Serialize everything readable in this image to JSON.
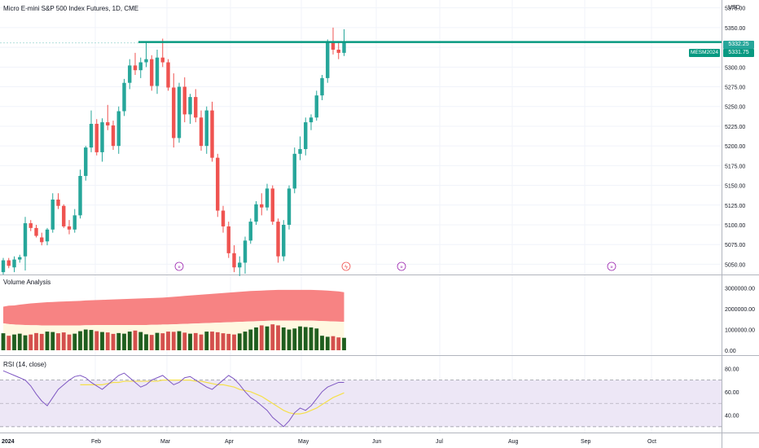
{
  "header": {
    "title": "Micro E-mini S&P 500 Index Futures, 1D, CME",
    "currency": "USD"
  },
  "price_tags": {
    "last_price": "5332.25",
    "line_price": "5331.75",
    "line_label": "MESM2024"
  },
  "panes": {
    "volume_title": "Volume Analysis",
    "rsi_title": "RSI (14, close)"
  },
  "colors": {
    "up": "#26a69a",
    "down": "#ef5350",
    "horizontal_line": "#089981",
    "volume_up": "#1f5e1f",
    "volume_down": "#cc3333",
    "volume_band_upper": "#f77c7c",
    "volume_band_lower": "#fff8e1",
    "rsi_line": "#7e57c2",
    "rsi_ma": "#f5e04a",
    "rsi_band": "#ede7f6",
    "event_icon": "#9c27b0"
  },
  "icons": [
    "dividend-icon",
    "earnings-lightning-icon"
  ],
  "chart_data": [
    {
      "type": "candlestick",
      "title": "Micro E-mini S&P 500 Index Futures, 1D, CME",
      "ylim": [
        5037,
        5385
      ],
      "y_ticks": [
        "5375.00",
        "5350.00",
        "5325.00",
        "5300.00",
        "5275.00",
        "5250.00",
        "5225.00",
        "5200.00",
        "5175.00",
        "5150.00",
        "5125.00",
        "5100.00",
        "5075.00",
        "5050.00"
      ],
      "x_ticks": [
        "2024",
        "Feb",
        "Mar",
        "Apr",
        "May",
        "Jun",
        "Jul",
        "Aug",
        "Sep",
        "Oct"
      ],
      "horizontal_line": 5331.75,
      "last_price": 5332.25,
      "candles": [
        [
          0,
          5040,
          5058,
          5037,
          5055
        ],
        [
          1,
          5055,
          5058,
          5045,
          5048
        ],
        [
          2,
          5046,
          5060,
          5040,
          5056
        ],
        [
          3,
          5056,
          5062,
          5052,
          5059
        ],
        [
          4,
          5060,
          5110,
          5042,
          5102
        ],
        [
          5,
          5102,
          5106,
          5092,
          5096
        ],
        [
          6,
          5096,
          5100,
          5084,
          5086
        ],
        [
          7,
          5084,
          5090,
          5074,
          5078
        ],
        [
          8,
          5079,
          5096,
          5074,
          5094
        ],
        [
          9,
          5094,
          5140,
          5090,
          5132
        ],
        [
          10,
          5132,
          5140,
          5120,
          5124
        ],
        [
          11,
          5124,
          5126,
          5096,
          5098
        ],
        [
          12,
          5098,
          5106,
          5088,
          5094
        ],
        [
          13,
          5094,
          5120,
          5090,
          5112
        ],
        [
          14,
          5112,
          5170,
          5108,
          5162
        ],
        [
          15,
          5162,
          5200,
          5156,
          5198
        ],
        [
          16,
          5198,
          5245,
          5192,
          5228
        ],
        [
          17,
          5228,
          5234,
          5188,
          5192
        ],
        [
          18,
          5192,
          5235,
          5180,
          5230
        ],
        [
          19,
          5230,
          5252,
          5220,
          5226
        ],
        [
          20,
          5226,
          5232,
          5195,
          5200
        ],
        [
          21,
          5200,
          5250,
          5190,
          5244
        ],
        [
          22,
          5244,
          5285,
          5238,
          5280
        ],
        [
          23,
          5280,
          5310,
          5272,
          5302
        ],
        [
          24,
          5302,
          5318,
          5290,
          5296
        ],
        [
          25,
          5296,
          5312,
          5286,
          5306
        ],
        [
          26,
          5306,
          5332,
          5300,
          5310
        ],
        [
          27,
          5310,
          5315,
          5270,
          5276
        ],
        [
          28,
          5276,
          5322,
          5266,
          5312
        ],
        [
          29,
          5312,
          5336,
          5300,
          5306
        ],
        [
          30,
          5306,
          5310,
          5270,
          5274
        ],
        [
          31,
          5274,
          5292,
          5198,
          5210
        ],
        [
          32,
          5210,
          5280,
          5204,
          5275
        ],
        [
          33,
          5275,
          5287,
          5230,
          5240
        ],
        [
          34,
          5240,
          5266,
          5228,
          5262
        ],
        [
          35,
          5262,
          5272,
          5230,
          5236
        ],
        [
          36,
          5236,
          5245,
          5194,
          5200
        ],
        [
          37,
          5200,
          5250,
          5190,
          5245
        ],
        [
          38,
          5245,
          5256,
          5180,
          5185
        ],
        [
          39,
          5185,
          5190,
          5110,
          5118
        ],
        [
          40,
          5118,
          5124,
          5090,
          5098
        ],
        [
          41,
          5098,
          5104,
          5058,
          5064
        ],
        [
          42,
          5064,
          5074,
          5040,
          5046
        ],
        [
          43,
          5046,
          5060,
          5035,
          5052
        ],
        [
          44,
          5052,
          5085,
          5038,
          5080
        ],
        [
          45,
          5080,
          5108,
          5076,
          5104
        ],
        [
          46,
          5104,
          5130,
          5100,
          5126
        ],
        [
          47,
          5126,
          5140,
          5112,
          5122
        ],
        [
          48,
          5122,
          5152,
          5118,
          5146
        ],
        [
          49,
          5146,
          5150,
          5100,
          5104
        ],
        [
          50,
          5104,
          5108,
          5052,
          5060
        ],
        [
          51,
          5060,
          5106,
          5054,
          5100
        ],
        [
          52,
          5100,
          5150,
          5094,
          5146
        ],
        [
          53,
          5146,
          5198,
          5140,
          5190
        ],
        [
          54,
          5190,
          5212,
          5182,
          5196
        ],
        [
          55,
          5196,
          5236,
          5188,
          5230
        ],
        [
          56,
          5230,
          5240,
          5220,
          5236
        ],
        [
          57,
          5236,
          5270,
          5232,
          5264
        ],
        [
          58,
          5264,
          5290,
          5258,
          5286
        ],
        [
          59,
          5286,
          5335,
          5280,
          5331
        ],
        [
          60,
          5331,
          5350,
          5316,
          5322
        ],
        [
          61,
          5322,
          5332,
          5310,
          5318
        ],
        [
          62,
          5318,
          5348,
          5314,
          5332
        ]
      ]
    },
    {
      "type": "bar",
      "title": "Volume Analysis",
      "ylim": [
        0,
        3300000
      ],
      "y_ticks": [
        "3000000.00",
        "2000000.00",
        "1000000.00",
        "0.00"
      ],
      "values": [
        820000,
        700000,
        760000,
        800000,
        720000,
        760000,
        830000,
        790000,
        900000,
        880000,
        820000,
        860000,
        760000,
        800000,
        920000,
        1000000,
        980000,
        920000,
        880000,
        860000,
        790000,
        830000,
        800000,
        900000,
        950000,
        880000,
        770000,
        740000,
        840000,
        820000,
        900000,
        890000,
        920000,
        850000,
        800000,
        830000,
        760000,
        900000,
        900000,
        870000,
        820000,
        790000,
        760000,
        810000,
        900000,
        1000000,
        1100000,
        1200000,
        1150000,
        1250000,
        1200000,
        1100000,
        1000000,
        1050000,
        1150000,
        1120000,
        1100000,
        1050000,
        700000,
        650000,
        680000,
        620000,
        600000
      ],
      "band_upper": [
        2100000,
        2150000,
        2160000,
        2200000,
        2230000,
        2260000,
        2280000,
        2300000,
        2320000,
        2330000,
        2340000,
        2350000,
        2360000,
        2370000,
        2380000,
        2400000,
        2410000,
        2420000,
        2430000,
        2440000,
        2450000,
        2460000,
        2470000,
        2480000,
        2490000,
        2500000,
        2510000,
        2520000,
        2530000,
        2540000,
        2560000,
        2580000,
        2600000,
        2620000,
        2640000,
        2660000,
        2680000,
        2700000,
        2720000,
        2740000,
        2760000,
        2780000,
        2800000,
        2820000,
        2840000,
        2860000,
        2870000,
        2880000,
        2890000,
        2900000,
        2910000,
        2910000,
        2910000,
        2910000,
        2910000,
        2910000,
        2910000,
        2900000,
        2890000,
        2880000,
        2860000,
        2840000,
        2800000
      ],
      "band_lower": [
        1300000,
        1260000,
        1240000,
        1230000,
        1220000,
        1210000,
        1210000,
        1200000,
        1200000,
        1200000,
        1200000,
        1200000,
        1200000,
        1200000,
        1200000,
        1210000,
        1210000,
        1220000,
        1220000,
        1220000,
        1220000,
        1220000,
        1220000,
        1220000,
        1220000,
        1220000,
        1220000,
        1230000,
        1230000,
        1240000,
        1240000,
        1250000,
        1260000,
        1270000,
        1280000,
        1290000,
        1300000,
        1310000,
        1320000,
        1330000,
        1340000,
        1350000,
        1360000,
        1370000,
        1380000,
        1390000,
        1400000,
        1410000,
        1420000,
        1430000,
        1430000,
        1430000,
        1430000,
        1430000,
        1430000,
        1430000,
        1430000,
        1420000,
        1410000,
        1400000,
        1390000,
        1380000,
        1370000
      ]
    },
    {
      "type": "line",
      "title": "RSI (14, close)",
      "ylim": [
        25,
        90
      ],
      "y_ticks": [
        "80.00",
        "60.00",
        "40.00"
      ],
      "bands": [
        70,
        50,
        30
      ],
      "series": [
        {
          "values": [
            78,
            76,
            74,
            72,
            70,
            65,
            58,
            52,
            48,
            55,
            62,
            66,
            70,
            73,
            74,
            72,
            68,
            65,
            62,
            66,
            70,
            74,
            76,
            72,
            68,
            64,
            66,
            70,
            72,
            74,
            70,
            66,
            68,
            72,
            73,
            70,
            67,
            64,
            62,
            66,
            70,
            74,
            71,
            66,
            60,
            55,
            52,
            48,
            44,
            38,
            34,
            30,
            35,
            42,
            46,
            44,
            48,
            54,
            60,
            64,
            66,
            68,
            68
          ]
        },
        {
          "values": [
            null,
            null,
            null,
            null,
            null,
            null,
            null,
            null,
            null,
            null,
            null,
            null,
            null,
            null,
            66,
            66,
            66,
            66,
            66,
            67,
            68,
            68,
            69,
            69,
            69,
            69,
            69,
            69,
            69,
            70,
            70,
            70,
            70,
            70,
            70,
            69,
            69,
            68,
            67,
            66,
            66,
            65,
            64,
            62,
            61,
            60,
            58,
            56,
            53,
            50,
            47,
            44,
            42,
            41,
            41,
            42,
            44,
            46,
            49,
            52,
            55,
            57,
            59
          ]
        }
      ]
    }
  ]
}
